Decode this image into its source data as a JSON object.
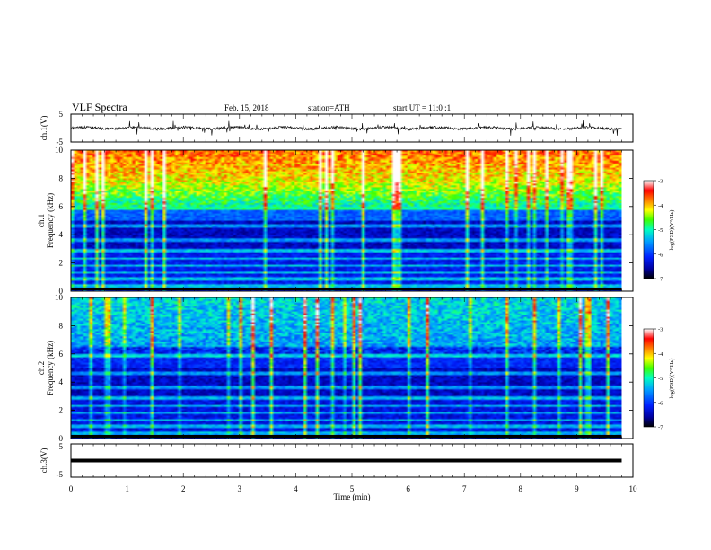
{
  "header": {
    "title": "VLF Spectra",
    "date": "Feb. 15, 2018",
    "station": "station=ATH",
    "start_ut": "start UT =  11:0 :1"
  },
  "chart_data": [
    {
      "type": "line",
      "name": "ch1-waveform",
      "ylabel": "ch.1(V)",
      "ylim": [
        -5,
        5
      ],
      "ytick_labels": [
        "5",
        "-5"
      ],
      "xlim": [
        0,
        10
      ],
      "data_end_min": 9.8,
      "trace_level_V": 0,
      "trace_noise_V": [
        -2,
        2
      ]
    },
    {
      "type": "heatmap",
      "name": "ch1-spectrogram",
      "ylabel": "ch.1\nFrequency (kHz)",
      "ylim": [
        0,
        10
      ],
      "ytick_labels": [
        "0",
        "2",
        "4",
        "6",
        "8",
        "10"
      ],
      "xlim": [
        0,
        10
      ],
      "data_end_min": 9.8,
      "colorbar": {
        "label": "log(PSD)(V²/Hz)",
        "range": [
          -7,
          -3
        ],
        "ticks": [
          "-3",
          "-4",
          "-5",
          "-6",
          "-7"
        ]
      }
    },
    {
      "type": "heatmap",
      "name": "ch2-spectrogram",
      "ylabel": "ch.2\nFrequency (kHz)",
      "ylim": [
        0,
        10
      ],
      "ytick_labels": [
        "0",
        "2",
        "4",
        "6",
        "8",
        "10"
      ],
      "xlim": [
        0,
        10
      ],
      "data_end_min": 9.8,
      "colorbar": {
        "label": "log(PSD)(V²/Hz)",
        "range": [
          -7,
          -3
        ],
        "ticks": [
          "-3",
          "-4",
          "-5",
          "-6",
          "-7"
        ]
      }
    },
    {
      "type": "line",
      "name": "ch3-waveform",
      "ylabel": "ch.3(V)",
      "ylim": [
        -5,
        5
      ],
      "ytick_labels": [
        "5",
        "-5"
      ],
      "xlim": [
        0,
        10
      ],
      "data_end_min": 9.8,
      "trace_level_V": 0,
      "xlabel": "Time (min)",
      "xtick_labels": [
        "0",
        "1",
        "2",
        "3",
        "4",
        "5",
        "6",
        "7",
        "8",
        "9",
        "10"
      ]
    }
  ],
  "colors": {
    "colormap": [
      "#000000",
      "#0000a0",
      "#0020ff",
      "#00a0ff",
      "#00ffc0",
      "#40ff00",
      "#ffff00",
      "#ff8000",
      "#ff0000",
      "#ffffff"
    ]
  }
}
